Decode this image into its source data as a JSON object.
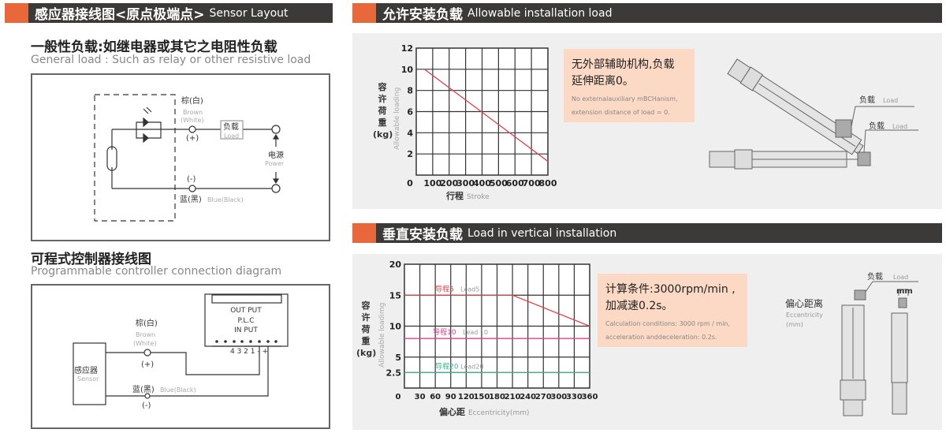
{
  "sensor_layout": {
    "header_zh": "感应器接线图<原点极端点>",
    "header_en": "Sensor Layout",
    "general": {
      "title_zh": "一般性负载:如继电器或其它之电阻性负载",
      "title_en": "General load : Such as relay or other resistive load",
      "brown_zh": "棕(白)",
      "brown_en1": "Brown",
      "brown_en2": "(White)",
      "plus": "(+)",
      "minus": "(-)",
      "load_zh": "负载",
      "load_en": "Load",
      "power_zh": "电源",
      "power_en": "Power",
      "blue_zh": "蓝(黑)",
      "blue_en": "Blue(Black)"
    },
    "plc": {
      "title_zh": "可程式控制器接线图",
      "title_en": "Programmable controller connection diagram",
      "out": "OUT PUT",
      "plc": "P.L.C",
      "in": "IN PUT",
      "terminals": "4 3 2 1 - +",
      "brown_zh": "棕(白)",
      "brown_en1": "Brown",
      "brown_en2": "(White)",
      "plus": "(+)",
      "minus": "(-)",
      "blue_zh": "蓝(黑)",
      "blue_en": "Blue(Black)",
      "sensor_zh": "感应器",
      "sensor_en": "Sensor"
    }
  },
  "allowable": {
    "header_zh": "允许安装负载",
    "header_en": "Allowable installation load",
    "note_zh1": "无外部辅助机构,负载",
    "note_zh2": "延伸距离0。",
    "note_en1": "No externalauxiliary mBCHanism,",
    "note_en2": "extension distance of load = 0.",
    "load1_zh": "负载",
    "load1_en": "Load",
    "load2_zh": "负载",
    "load2_en": "Load"
  },
  "vertical": {
    "header_zh": "垂直安装负载",
    "header_en": "Load in vertical installation",
    "note_zh1": "计算条件:3000rpm/min ,",
    "note_zh2": "加减速0.2s。",
    "note_en1": "Calculation conditions: 3000 rpm / min,",
    "note_en2": "acceleration anddeceleration: 0.2s.",
    "load_zh": "负载",
    "load_en": "Load",
    "ecc_zh": "偏心距离",
    "ecc_en1": "Eccentricity",
    "ecc_en2": "(mm)",
    "mm": "mm"
  },
  "colors": {
    "accent": "#e8673b",
    "header_bg": "#3b3a39",
    "note_bg": "#fbd9c4",
    "lead5": "#e0434f",
    "lead10": "#e0408f",
    "lead20": "#3bb58a"
  },
  "chart_data": [
    {
      "type": "line",
      "ylabel_zh": [
        "容",
        "许",
        "荷",
        "重",
        "(kg)"
      ],
      "ylabel_en": "Allowable loading",
      "xlabel_zh": "行程",
      "xlabel_en": "Stroke",
      "xlim": [
        0,
        800
      ],
      "ylim": [
        0,
        12
      ],
      "grid": true,
      "x_ticks": [
        "0",
        "100",
        "200",
        "300",
        "400",
        "500",
        "600",
        "700",
        "800"
      ],
      "y_ticks": [
        "2",
        "4",
        "6",
        "8",
        "10",
        "12"
      ],
      "series": [
        {
          "x": [
            50,
            800
          ],
          "y": [
            10,
            1.3
          ],
          "color": "#e0434f"
        }
      ]
    },
    {
      "type": "line",
      "ylabel_zh": [
        "容",
        "许",
        "荷",
        "重",
        "(kg)"
      ],
      "ylabel_en": "Allowable loadimg",
      "xlabel_zh": "偏心距",
      "xlabel_en": "Eccentricity(mm)",
      "xlim": [
        0,
        360
      ],
      "ylim": [
        0,
        20
      ],
      "grid": true,
      "x_ticks": [
        "0",
        "30",
        "60",
        "90",
        "120",
        "150",
        "180",
        "210",
        "240",
        "270",
        "300",
        "330",
        "360"
      ],
      "y_ticks": [
        "2.5",
        "5",
        "10",
        "15",
        "20"
      ],
      "series": [
        {
          "name": "导程5 Lead5",
          "label_zh": "导程5",
          "label_en": "Lead5",
          "x": [
            0,
            210,
            360
          ],
          "y": [
            15,
            15,
            10
          ],
          "color": "#e0434f"
        },
        {
          "name": "导程10 Lead 10",
          "label_zh": "导程10",
          "label_en": "Lead 10",
          "x": [
            0,
            360
          ],
          "y": [
            8,
            8
          ],
          "color": "#e0408f"
        },
        {
          "name": "导程20 Lead20",
          "label_zh": "导程20",
          "label_en": "Lead20",
          "x": [
            0,
            360
          ],
          "y": [
            2.5,
            2.5
          ],
          "color": "#3bb58a"
        }
      ]
    }
  ]
}
